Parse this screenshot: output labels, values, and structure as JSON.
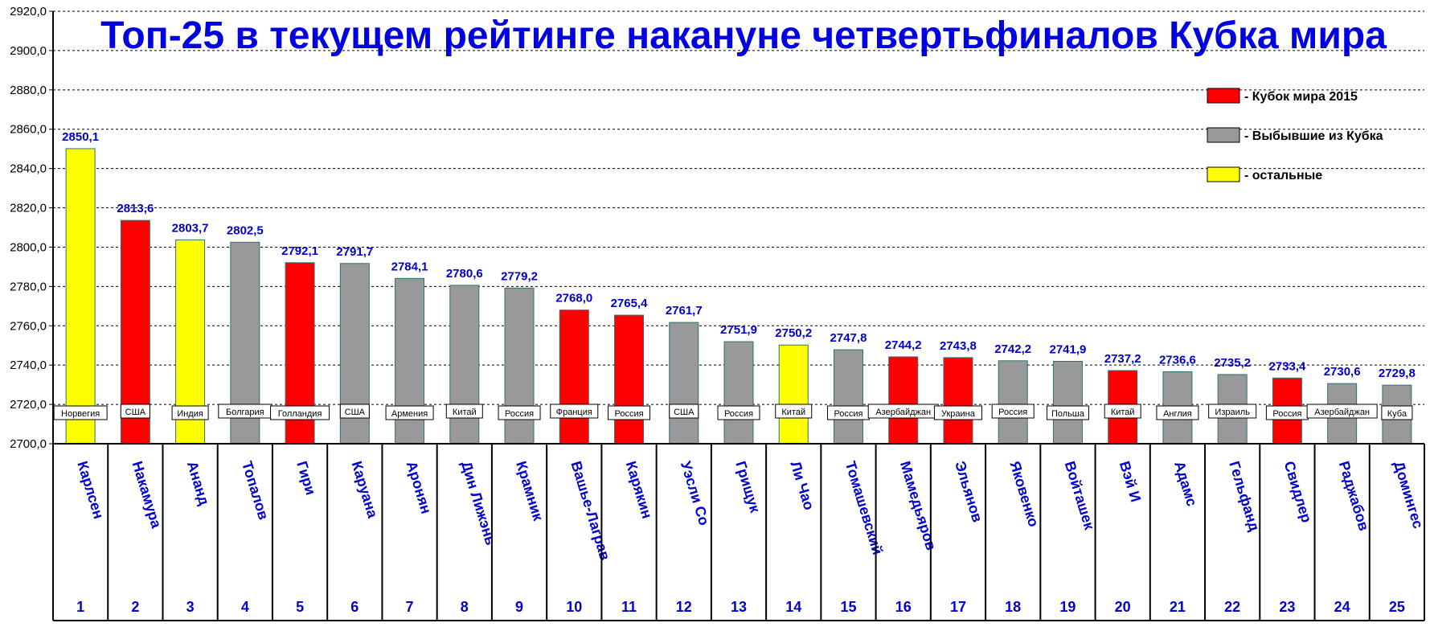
{
  "chart_data": {
    "type": "bar",
    "title": "Топ-25 в текущем рейтинге накануне четвертьфиналов Кубка мира",
    "ylim": [
      2700,
      2920
    ],
    "y_tick_step": 20,
    "y_tick_labels": [
      "2700,0",
      "2720,0",
      "2740,0",
      "2760,0",
      "2780,0",
      "2800,0",
      "2820,0",
      "2840,0",
      "2860,0",
      "2880,0",
      "2900,0",
      "2920,0"
    ],
    "grid": "horizontal dashed",
    "legend_position": "top-right",
    "legend": [
      {
        "key": "cup",
        "label": "- Кубок мира 2015",
        "color": "#ff0000"
      },
      {
        "key": "out",
        "label": "- Выбывшие из Кубка",
        "color": "#999999"
      },
      {
        "key": "rest",
        "label": "- остальные",
        "color": "#ffff00"
      }
    ],
    "bars": [
      {
        "rank": "1",
        "name": "Карлсен",
        "country": "Норвегия",
        "value": 2850.1,
        "label": "2850,1",
        "group": "rest"
      },
      {
        "rank": "2",
        "name": "Накамура",
        "country": "США",
        "value": 2813.6,
        "label": "2813,6",
        "group": "cup"
      },
      {
        "rank": "3",
        "name": "Ананд",
        "country": "Индия",
        "value": 2803.7,
        "label": "2803,7",
        "group": "rest"
      },
      {
        "rank": "4",
        "name": "Топалов",
        "country": "Болгария",
        "value": 2802.5,
        "label": "2802,5",
        "group": "out"
      },
      {
        "rank": "5",
        "name": "Гири",
        "country": "Голландия",
        "value": 2792.1,
        "label": "2792,1",
        "group": "cup"
      },
      {
        "rank": "6",
        "name": "Каруана",
        "country": "США",
        "value": 2791.7,
        "label": "2791,7",
        "group": "out"
      },
      {
        "rank": "7",
        "name": "Аронян",
        "country": "Армения",
        "value": 2784.1,
        "label": "2784,1",
        "group": "out"
      },
      {
        "rank": "8",
        "name": "Дин Лижэнь",
        "country": "Китай",
        "value": 2780.6,
        "label": "2780,6",
        "group": "out"
      },
      {
        "rank": "9",
        "name": "Крамник",
        "country": "Россия",
        "value": 2779.2,
        "label": "2779,2",
        "group": "out"
      },
      {
        "rank": "10",
        "name": "Вашье-Лаграв",
        "country": "Франция",
        "value": 2768.0,
        "label": "2768,0",
        "group": "cup"
      },
      {
        "rank": "11",
        "name": "Карякин",
        "country": "Россия",
        "value": 2765.4,
        "label": "2765,4",
        "group": "cup"
      },
      {
        "rank": "12",
        "name": "Уэсли Со",
        "country": "США",
        "value": 2761.7,
        "label": "2761,7",
        "group": "out"
      },
      {
        "rank": "13",
        "name": "Грищук",
        "country": "Россия",
        "value": 2751.9,
        "label": "2751,9",
        "group": "out"
      },
      {
        "rank": "14",
        "name": "Ли Чао",
        "country": "Китай",
        "value": 2750.2,
        "label": "2750,2",
        "group": "rest"
      },
      {
        "rank": "15",
        "name": "Томашевский",
        "country": "Россия",
        "value": 2747.8,
        "label": "2747,8",
        "group": "out"
      },
      {
        "rank": "16",
        "name": "Мамедьяров",
        "country": "Азербайджан",
        "value": 2744.2,
        "label": "2744,2",
        "group": "cup"
      },
      {
        "rank": "17",
        "name": "Эльянов",
        "country": "Украина",
        "value": 2743.8,
        "label": "2743,8",
        "group": "cup"
      },
      {
        "rank": "18",
        "name": "Яковенко",
        "country": "Россия",
        "value": 2742.2,
        "label": "2742,2",
        "group": "out"
      },
      {
        "rank": "19",
        "name": "Войташек",
        "country": "Польша",
        "value": 2741.9,
        "label": "2741,9",
        "group": "out"
      },
      {
        "rank": "20",
        "name": "Вэй И",
        "country": "Китай",
        "value": 2737.2,
        "label": "2737,2",
        "group": "cup"
      },
      {
        "rank": "21",
        "name": "Адамс",
        "country": "Англия",
        "value": 2736.6,
        "label": "2736,6",
        "group": "out"
      },
      {
        "rank": "22",
        "name": "Гельфанд",
        "country": "Израиль",
        "value": 2735.2,
        "label": "2735,2",
        "group": "out"
      },
      {
        "rank": "23",
        "name": "Свидлер",
        "country": "Россия",
        "value": 2733.4,
        "label": "2733,4",
        "group": "cup"
      },
      {
        "rank": "24",
        "name": "Раджабов",
        "country": "Азербайджан",
        "value": 2730.6,
        "label": "2730,6",
        "group": "out"
      },
      {
        "rank": "25",
        "name": "Домингес",
        "country": "Куба",
        "value": 2729.8,
        "label": "2729,8",
        "group": "out"
      }
    ]
  }
}
